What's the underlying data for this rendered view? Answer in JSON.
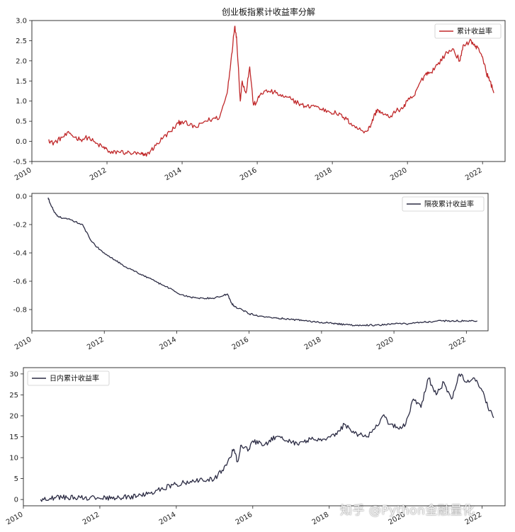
{
  "chart_data": [
    {
      "type": "line",
      "title": "创业板指累计收益率分解",
      "legend": "top-right",
      "grid": false,
      "color": "#c0282a",
      "ylim": [
        -0.5,
        3.0
      ],
      "xlim": [
        2010,
        2022.6
      ],
      "yticks": [
        -0.5,
        0.0,
        0.5,
        1.0,
        1.5,
        2.0,
        2.5,
        3.0
      ],
      "ytick_labels": [
        "-0.5",
        "0.0",
        "0.5",
        "1.0",
        "1.5",
        "2.0",
        "2.5",
        "3.0"
      ],
      "xticks": [
        2010,
        2012,
        2014,
        2016,
        2018,
        2020,
        2022
      ],
      "xtick_labels": [
        "2010",
        "2012",
        "2014",
        "2016",
        "2018",
        "2020",
        "2022"
      ],
      "series": [
        {
          "name": "累计收益率",
          "x": [
            2010.45,
            2010.55,
            2010.65,
            2010.8,
            2011.0,
            2011.15,
            2011.3,
            2011.5,
            2011.7,
            2011.9,
            2012.0,
            2012.1,
            2012.3,
            2012.5,
            2012.7,
            2012.9,
            2013.0,
            2013.15,
            2013.3,
            2013.5,
            2013.7,
            2013.9,
            2014.0,
            2014.2,
            2014.4,
            2014.6,
            2014.8,
            2015.0,
            2015.2,
            2015.3,
            2015.4,
            2015.45,
            2015.55,
            2015.6,
            2015.7,
            2015.8,
            2015.9,
            2016.0,
            2016.1,
            2016.3,
            2016.5,
            2016.7,
            2016.9,
            2017.1,
            2017.3,
            2017.5,
            2017.7,
            2017.9,
            2018.1,
            2018.3,
            2018.5,
            2018.7,
            2018.9,
            2019.0,
            2019.1,
            2019.2,
            2019.3,
            2019.5,
            2019.7,
            2019.9,
            2020.0,
            2020.2,
            2020.3,
            2020.5,
            2020.6,
            2020.8,
            2021.0,
            2021.2,
            2021.4,
            2021.5,
            2021.7,
            2021.8,
            2021.9,
            2022.0,
            2022.1,
            2022.2,
            2022.3
          ],
          "y": [
            0.05,
            -0.05,
            0.0,
            0.1,
            0.2,
            0.1,
            0.05,
            0.1,
            -0.05,
            -0.15,
            -0.2,
            -0.3,
            -0.25,
            -0.28,
            -0.3,
            -0.32,
            -0.35,
            -0.25,
            -0.1,
            0.1,
            0.25,
            0.45,
            0.5,
            0.4,
            0.35,
            0.5,
            0.55,
            0.6,
            1.2,
            2.0,
            2.85,
            2.6,
            1.0,
            1.5,
            1.2,
            1.85,
            0.9,
            1.0,
            1.2,
            1.25,
            1.2,
            1.1,
            1.05,
            0.95,
            0.85,
            0.9,
            0.8,
            0.75,
            0.7,
            0.6,
            0.45,
            0.3,
            0.25,
            0.35,
            0.6,
            0.8,
            0.7,
            0.6,
            0.75,
            0.85,
            1.0,
            1.15,
            1.4,
            1.7,
            1.7,
            1.9,
            2.15,
            2.3,
            2.0,
            2.4,
            2.5,
            2.35,
            2.3,
            2.1,
            1.7,
            1.5,
            1.2
          ]
        }
      ]
    },
    {
      "type": "line",
      "title": "",
      "legend": "top-right",
      "grid": false,
      "color": "#2c2c44",
      "ylim": [
        -0.95,
        0.02
      ],
      "xlim": [
        2010,
        2022.6
      ],
      "yticks": [
        -0.8,
        -0.6,
        -0.4,
        -0.2,
        0.0
      ],
      "ytick_labels": [
        "-0.8",
        "-0.6",
        "-0.4",
        "-0.2",
        "0.0"
      ],
      "xticks": [
        2010,
        2012,
        2014,
        2016,
        2018,
        2020,
        2022
      ],
      "xtick_labels": [
        "2010",
        "2012",
        "2014",
        "2016",
        "2018",
        "2020",
        "2022"
      ],
      "series": [
        {
          "name": "隔夜累计收益率",
          "x": [
            2010.45,
            2010.5,
            2010.6,
            2010.7,
            2010.8,
            2011.0,
            2011.2,
            2011.4,
            2011.6,
            2011.8,
            2012.0,
            2012.3,
            2012.6,
            2013.0,
            2013.4,
            2013.8,
            2014.0,
            2014.3,
            2014.6,
            2015.0,
            2015.3,
            2015.4,
            2015.5,
            2015.6,
            2015.8,
            2016.0,
            2016.4,
            2016.8,
            2017.2,
            2017.6,
            2018.0,
            2018.4,
            2018.8,
            2019.2,
            2019.6,
            2020.0,
            2020.4,
            2020.8,
            2021.2,
            2021.6,
            2022.0,
            2022.3
          ],
          "y": [
            -0.01,
            -0.05,
            -0.1,
            -0.14,
            -0.15,
            -0.16,
            -0.18,
            -0.2,
            -0.3,
            -0.36,
            -0.4,
            -0.45,
            -0.5,
            -0.55,
            -0.6,
            -0.65,
            -0.68,
            -0.71,
            -0.72,
            -0.72,
            -0.7,
            -0.69,
            -0.75,
            -0.78,
            -0.8,
            -0.83,
            -0.85,
            -0.86,
            -0.87,
            -0.88,
            -0.89,
            -0.9,
            -0.91,
            -0.91,
            -0.91,
            -0.9,
            -0.9,
            -0.89,
            -0.88,
            -0.88,
            -0.88,
            -0.88
          ]
        }
      ]
    },
    {
      "type": "line",
      "title": "",
      "legend": "top-left",
      "grid": false,
      "color": "#2c2c44",
      "ylim": [
        -1.5,
        31.5
      ],
      "xlim": [
        2010,
        2022.6
      ],
      "yticks": [
        0,
        5,
        10,
        15,
        20,
        25,
        30
      ],
      "ytick_labels": [
        "0",
        "5",
        "10",
        "15",
        "20",
        "25",
        "30"
      ],
      "xticks": [
        2010,
        2012,
        2014,
        2016,
        2018,
        2020,
        2022
      ],
      "xtick_labels": [
        "2010",
        "2012",
        "2014",
        "2016",
        "2018",
        "2020",
        "2022"
      ],
      "series": [
        {
          "name": "日内累计收益率",
          "x": [
            2010.45,
            2010.7,
            2011.0,
            2011.5,
            2012.0,
            2012.5,
            2013.0,
            2013.3,
            2013.6,
            2013.9,
            2014.2,
            2014.6,
            2015.0,
            2015.2,
            2015.4,
            2015.5,
            2015.6,
            2015.7,
            2015.9,
            2016.0,
            2016.3,
            2016.6,
            2016.9,
            2017.2,
            2017.5,
            2017.8,
            2018.0,
            2018.2,
            2018.4,
            2018.6,
            2018.8,
            2019.0,
            2019.2,
            2019.4,
            2019.6,
            2019.8,
            2020.0,
            2020.2,
            2020.4,
            2020.6,
            2020.8,
            2021.0,
            2021.2,
            2021.4,
            2021.6,
            2021.8,
            2022.0,
            2022.15,
            2022.3
          ],
          "y": [
            0.0,
            0.3,
            0.5,
            0.4,
            0.3,
            0.5,
            0.8,
            1.5,
            2.5,
            3.5,
            4.0,
            4.5,
            5.0,
            7.0,
            10.0,
            12.0,
            9.0,
            13.0,
            12.0,
            14.0,
            13.0,
            15.0,
            14.0,
            13.0,
            14.5,
            14.0,
            15.0,
            15.5,
            18.0,
            16.0,
            15.5,
            15.0,
            17.0,
            20.0,
            18.0,
            17.0,
            18.0,
            24.0,
            22.0,
            29.0,
            25.0,
            28.0,
            24.0,
            30.0,
            28.0,
            29.0,
            26.0,
            22.0,
            19.5
          ]
        }
      ]
    }
  ],
  "watermark": "知乎 @Python金融量化"
}
